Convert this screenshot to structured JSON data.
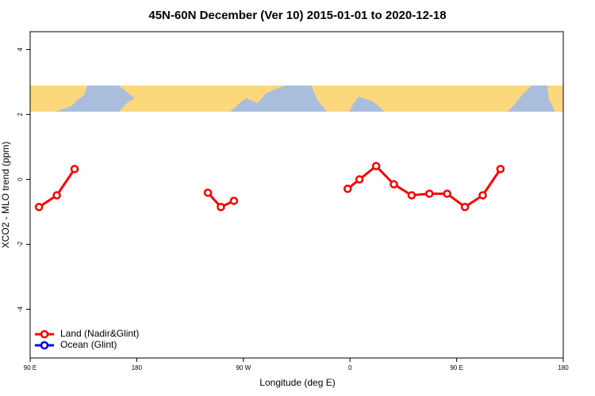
{
  "chart_data": {
    "type": "line",
    "title": "45N-60N December (Ver 10)   2015-01-01 to 2020-12-18",
    "x_label": "Longitude (deg E)",
    "y_label": "XCO2 - MLO trend (ppm)",
    "x": [
      97.5,
      112.5,
      127.5,
      180,
      240,
      251,
      262,
      310,
      358,
      368,
      382,
      397,
      412,
      427,
      442,
      457,
      472,
      487
    ],
    "series": [
      {
        "name": "Land (Nadir&Glint)",
        "color": "#ff0000",
        "values": [
          -0.85,
          -0.49,
          0.32,
          null,
          -0.41,
          -0.85,
          -0.66,
          null,
          -0.29,
          0.0,
          0.41,
          -0.15,
          -0.49,
          -0.44,
          -0.44,
          -0.85,
          -0.49,
          0.32
        ]
      },
      {
        "name": "Ocean (Glint)",
        "color": "#0000ff",
        "values": [
          null,
          null,
          null,
          null,
          null,
          null,
          null,
          null,
          null,
          null,
          null,
          null,
          null,
          null,
          null,
          null,
          null,
          null
        ]
      }
    ],
    "xlim": [
      90,
      540
    ],
    "ylim": [
      -5.5,
      4.55
    ],
    "xticks": [
      {
        "value": 90,
        "label": "90 E"
      },
      {
        "value": 180,
        "label": "180"
      },
      {
        "value": 270,
        "label": "90 W"
      },
      {
        "value": 360,
        "label": "0"
      },
      {
        "value": 450,
        "label": "90 E"
      },
      {
        "value": 540,
        "label": "180"
      }
    ],
    "yticks": [
      -4,
      -2,
      0,
      2,
      4
    ],
    "legend": "bottom-left"
  }
}
